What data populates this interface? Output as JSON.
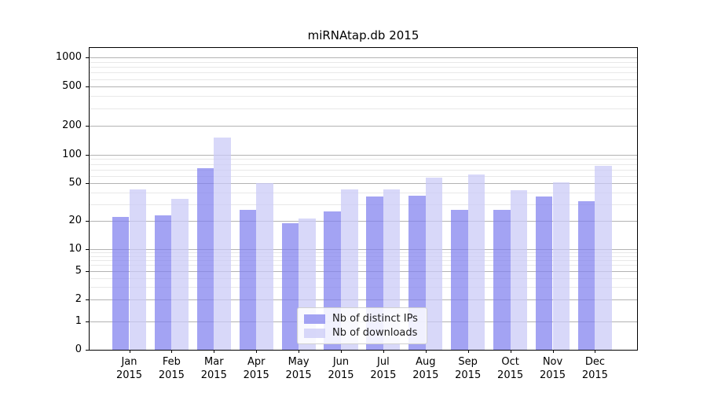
{
  "title": "miRNAtap.db 2015",
  "chart_data": {
    "type": "bar",
    "title": "miRNAtap.db 2015",
    "categories": [
      "Jan",
      "Feb",
      "Mar",
      "Apr",
      "May",
      "Jun",
      "Jul",
      "Aug",
      "Sep",
      "Oct",
      "Nov",
      "Dec"
    ],
    "year_label": "2015",
    "series": [
      {
        "name": "Nb of distinct IPs",
        "color": "#a6a6f2",
        "values": [
          22,
          23,
          72,
          26,
          19,
          25,
          36,
          37,
          26,
          26,
          36,
          32
        ]
      },
      {
        "name": "Nb of downloads",
        "color": "#d8d8f8",
        "values": [
          43,
          34,
          150,
          50,
          21,
          43,
          43,
          57,
          62,
          42,
          51,
          76
        ]
      }
    ],
    "yscale": "symlog",
    "y_ticks": [
      0,
      1,
      2,
      5,
      10,
      20,
      50,
      100,
      200,
      500,
      1000
    ],
    "ylim": [
      0,
      1250
    ],
    "xlabel": "",
    "ylabel": "",
    "grid": "horizontal major and minor gridlines",
    "legend_position": "lower center inside plot"
  },
  "colors": {
    "distinct_ips_bar": "#a6a6f2",
    "downloads_bar": "#d8d8f8",
    "grid_major": "#b3b3b3",
    "grid_minor": "#e8e8e8",
    "axis": "#000000",
    "background": "#ffffff"
  }
}
